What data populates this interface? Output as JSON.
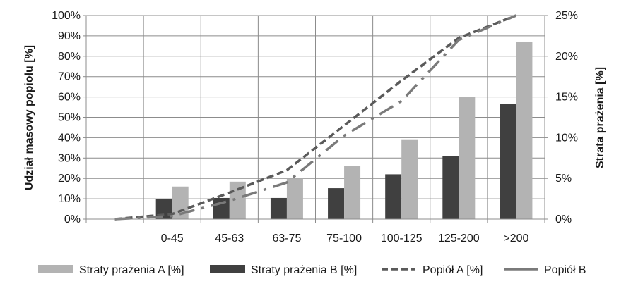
{
  "chart_data": {
    "type": "bar",
    "categories": [
      "",
      "0-45",
      "45-63",
      "63-75",
      "75-100",
      "100-125",
      "125-200",
      ">200"
    ],
    "ylabel": "Udział masowy popiołu [%]",
    "y2label": "Strata prażenia [%]",
    "ylim": [
      0,
      100
    ],
    "y2lim": [
      0,
      25
    ],
    "yticks": [
      "0%",
      "10%",
      "20%",
      "30%",
      "40%",
      "50%",
      "60%",
      "70%",
      "80%",
      "90%",
      "100%"
    ],
    "y2ticks": [
      "0%",
      "5%",
      "10%",
      "15%",
      "20%",
      "25%"
    ],
    "grid": true,
    "legend_position": "bottom",
    "series": [
      {
        "name": "Straty prażenia A [%]",
        "kind": "bar",
        "axis": "right",
        "color": "#b3b3b3",
        "values": [
          null,
          4.0,
          4.6,
          5.0,
          6.5,
          9.8,
          15.0,
          21.8
        ]
      },
      {
        "name": "Straty prażenia B [%]",
        "kind": "bar",
        "axis": "right",
        "color": "#404040",
        "values": [
          null,
          2.5,
          2.6,
          2.6,
          3.8,
          5.5,
          7.7,
          14.1
        ]
      },
      {
        "name": "Popiół A [%]",
        "kind": "line",
        "axis": "left",
        "color": "#5a5a5a",
        "dash": "dashed",
        "values": [
          0,
          2.5,
          13,
          24,
          46,
          68,
          89,
          100
        ]
      },
      {
        "name": "Popiół B",
        "kind": "line",
        "axis": "left",
        "color": "#7a7a7a",
        "dash": "dashdot",
        "values": [
          0,
          1.5,
          9,
          18,
          41,
          58,
          88,
          100
        ]
      }
    ]
  }
}
